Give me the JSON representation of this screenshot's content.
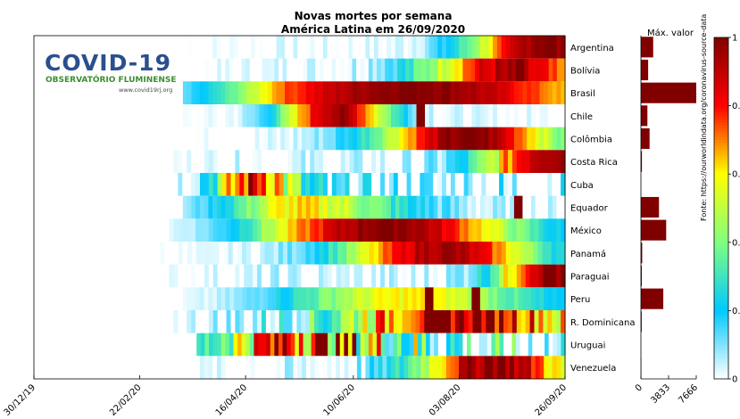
{
  "title_line1": "Novas mortes por semana",
  "title_line2": "América Latina em 26/09/2020",
  "max_label": "Máx. valor",
  "source": "Fonte: https://ourworldindata.org/coronavirus-source-data",
  "logo": {
    "title": "COVID-19",
    "subtitle": "OBSERVATÓRIO FLUMINENSE",
    "url": "www.covid19rj.org"
  },
  "colors": {
    "bar": "#800000",
    "colormap": [
      "#ffffff",
      "#00c8ff",
      "#80ff80",
      "#ffff00",
      "#ff0000",
      "#800000"
    ]
  },
  "chart_data": [
    {
      "type": "heatmap",
      "title": "Novas mortes por semana",
      "x_tick_labels": [
        "30/12/19",
        "22/02/20",
        "16/04/20",
        "10/06/20",
        "03/08/20",
        "26/09/20"
      ],
      "x_range": [
        "30/12/19",
        "26/09/20"
      ],
      "rows": [
        "Argentina",
        "Bolívia",
        "Brasil",
        "Chile",
        "Colômbia",
        "Costa Rica",
        "Cuba",
        "Equador",
        "México",
        "Panamá",
        "Paraguai",
        "Peru",
        "R. Dominicana",
        "Uruguai",
        "Venezuela"
      ],
      "row_profiles": [
        {
          "start": "15/03/20",
          "peak": 1.0,
          "pos": 0.95,
          "width": 0.2,
          "spikes": [],
          "noise": 0.05
        },
        {
          "start": "22/03/20",
          "peak": 0.9,
          "pos": 0.85,
          "width": 0.25,
          "spikes": [
            [
              0.88,
              1.0
            ]
          ],
          "noise": 0.08
        },
        {
          "start": "15/03/20",
          "peak": 1.0,
          "pos": 0.6,
          "width": 0.6,
          "spikes": [],
          "noise": 0.03
        },
        {
          "start": "15/03/20",
          "peak": 0.95,
          "pos": 0.4,
          "width": 0.15,
          "spikes": [
            [
              0.62,
              1.0
            ]
          ],
          "noise": 0.05
        },
        {
          "start": "15/03/20",
          "peak": 1.0,
          "pos": 0.75,
          "width": 0.25,
          "spikes": [],
          "noise": 0.05
        },
        {
          "start": "08/03/20",
          "peak": 1.0,
          "pos": 0.97,
          "width": 0.18,
          "spikes": [],
          "noise": 0.1
        },
        {
          "start": "08/03/20",
          "peak": 0.95,
          "pos": 0.2,
          "width": 0.12,
          "spikes": [],
          "noise": 0.25
        },
        {
          "start": "15/03/20",
          "peak": 0.6,
          "pos": 0.3,
          "width": 0.3,
          "spikes": [
            [
              0.88,
              1.0
            ]
          ],
          "noise": 0.08
        },
        {
          "start": "08/03/20",
          "peak": 1.0,
          "pos": 0.55,
          "width": 0.35,
          "spikes": [],
          "noise": 0.05
        },
        {
          "start": "01/03/20",
          "peak": 0.95,
          "pos": 0.7,
          "width": 0.25,
          "spikes": [],
          "noise": 0.05
        },
        {
          "start": "08/03/20",
          "peak": 1.0,
          "pos": 0.97,
          "width": 0.15,
          "spikes": [],
          "noise": 0.1
        },
        {
          "start": "15/03/20",
          "peak": 0.6,
          "pos": 0.6,
          "width": 0.35,
          "spikes": [
            [
              0.65,
              1.0
            ],
            [
              0.77,
              1.0
            ]
          ],
          "noise": 0.05
        },
        {
          "start": "08/03/20",
          "peak": 0.95,
          "pos": 0.75,
          "width": 0.35,
          "spikes": [],
          "noise": 0.2
        },
        {
          "start": "22/03/20",
          "peak": 0.9,
          "pos": 0.2,
          "width": 0.4,
          "spikes": [],
          "noise": 0.4
        },
        {
          "start": "15/03/20",
          "peak": 1.0,
          "pos": 0.82,
          "width": 0.22,
          "spikes": [],
          "noise": 0.1
        }
      ]
    },
    {
      "type": "bar",
      "title": "Máx. valor",
      "orientation": "horizontal",
      "categories": [
        "Argentina",
        "Bolívia",
        "Brasil",
        "Chile",
        "Colômbia",
        "Costa Rica",
        "Cuba",
        "Equador",
        "México",
        "Panamá",
        "Paraguai",
        "Peru",
        "R. Dominicana",
        "Uruguai",
        "Venezuela"
      ],
      "values": [
        1700,
        1000,
        7666,
        900,
        1200,
        140,
        20,
        2500,
        3500,
        180,
        120,
        3100,
        110,
        10,
        60
      ],
      "x_ticks": [
        0,
        3833,
        7666
      ],
      "xlim": [
        0,
        7666
      ]
    },
    {
      "type": "colorbar",
      "ticks": [
        0,
        0.2,
        0.4,
        0.6,
        0.8,
        1
      ],
      "tick_labels": [
        "0",
        "0.",
        "0.",
        "0.",
        "0.",
        "1"
      ],
      "range": [
        0,
        1
      ]
    }
  ]
}
